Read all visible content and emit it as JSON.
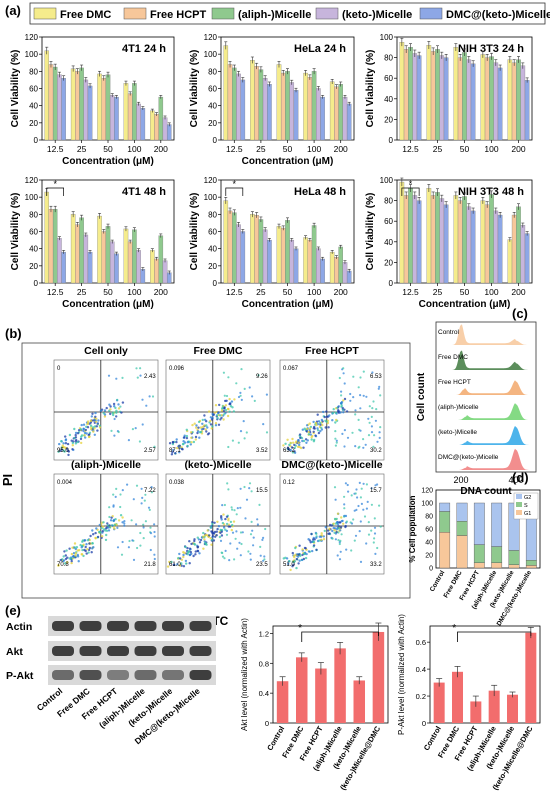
{
  "panel_labels": {
    "a": "(a)",
    "b": "(b)",
    "c": "(c)",
    "d": "(d)",
    "e": "(e)"
  },
  "colors": {
    "Free DMC": "#f5ec8c",
    "Free HCPT": "#f7c79a",
    "(aliph-)Micelle": "#8fc98e",
    "(keto-)Micelle": "#c7b5dc",
    "DMC@(keto-)Micelle": "#8da7e6",
    "e_bar": "#f26d6d",
    "g2": "#aac4ee",
    "s": "#8fc98e",
    "g1": "#f7c79a"
  },
  "legend": [
    "Free DMC",
    "Free HCPT",
    "(aliph-)Micelle",
    "(keto-)Micelle",
    "DMC@(keto-)Micelle"
  ],
  "chart_data": [
    {
      "type": "bar",
      "title": "4T1 24 h",
      "categories": [
        "12.5",
        "25",
        "50",
        "100",
        "200"
      ],
      "xlabel": "Concentration (μM)",
      "ylabel": "Cell Viability (%)",
      "ylim": [
        0,
        120
      ],
      "yticks": [
        0,
        20,
        40,
        60,
        80,
        100,
        120
      ],
      "series": [
        {
          "name": "Free DMC",
          "values": [
            104,
            83,
            77,
            66,
            34
          ]
        },
        {
          "name": "Free HCPT",
          "values": [
            88,
            80,
            72,
            54,
            30
          ]
        },
        {
          "name": "(aliph-)Micelle",
          "values": [
            85,
            84,
            76,
            66,
            50
          ]
        },
        {
          "name": "(keto-)Micelle",
          "values": [
            76,
            70,
            52,
            42,
            26
          ]
        },
        {
          "name": "DMC@(keto-)Micelle",
          "values": [
            72,
            63,
            50,
            37,
            18
          ]
        }
      ]
    },
    {
      "type": "bar",
      "title": "HeLa 24 h",
      "categories": [
        "12.5",
        "25",
        "50",
        "100",
        "200"
      ],
      "xlabel": "Concentration (μM)",
      "ylabel": "Cell Viability (%)",
      "ylim": [
        0,
        120
      ],
      "yticks": [
        0,
        20,
        40,
        60,
        80,
        100,
        120
      ],
      "series": [
        {
          "name": "Free DMC",
          "values": [
            110,
            93,
            88,
            78,
            68
          ]
        },
        {
          "name": "Free HCPT",
          "values": [
            88,
            86,
            78,
            73,
            62
          ]
        },
        {
          "name": "(aliph-)Micelle",
          "values": [
            84,
            82,
            80,
            80,
            65
          ]
        },
        {
          "name": "(keto-)Micelle",
          "values": [
            77,
            72,
            67,
            60,
            50
          ]
        },
        {
          "name": "DMC@(keto-)Micelle",
          "values": [
            70,
            65,
            58,
            50,
            42
          ]
        }
      ]
    },
    {
      "type": "bar",
      "title": "NIH 3T3 24 h",
      "categories": [
        "12.5",
        "25",
        "50",
        "100",
        "200"
      ],
      "xlabel": "",
      "ylabel": "Cell Viability (%)",
      "ylim": [
        0,
        100
      ],
      "yticks": [
        0,
        20,
        40,
        60,
        80,
        100
      ],
      "series": [
        {
          "name": "Free DMC",
          "values": [
            95,
            92,
            90,
            83,
            78
          ]
        },
        {
          "name": "Free HCPT",
          "values": [
            88,
            86,
            80,
            80,
            75
          ]
        },
        {
          "name": "(aliph-)Micelle",
          "values": [
            90,
            88,
            85,
            81,
            78
          ]
        },
        {
          "name": "(keto-)Micelle",
          "values": [
            84,
            82,
            78,
            75,
            72
          ]
        },
        {
          "name": "DMC@(keto-)Micelle",
          "values": [
            82,
            80,
            74,
            70,
            58
          ]
        }
      ]
    },
    {
      "type": "bar",
      "title": "4T1 48 h",
      "categories": [
        "12.5",
        "25",
        "50",
        "100",
        "200"
      ],
      "xlabel": "Concentration (μM)",
      "ylabel": "Cell Viability (%)",
      "ylim": [
        0,
        120
      ],
      "yticks": [
        0,
        20,
        40,
        60,
        80,
        100,
        120
      ],
      "series": [
        {
          "name": "Free DMC",
          "values": [
            106,
            80,
            78,
            63,
            38
          ]
        },
        {
          "name": "Free HCPT",
          "values": [
            86,
            68,
            60,
            48,
            28
          ]
        },
        {
          "name": "(aliph-)Micelle",
          "values": [
            86,
            76,
            66,
            62,
            55
          ]
        },
        {
          "name": "(keto-)Micelle",
          "values": [
            52,
            56,
            48,
            38,
            26
          ]
        },
        {
          "name": "DMC@(keto-)Micelle",
          "values": [
            36,
            36,
            34,
            16,
            12
          ]
        }
      ]
    },
    {
      "type": "bar",
      "title": "HeLa 48 h",
      "categories": [
        "12.5",
        "25",
        "50",
        "100",
        "200"
      ],
      "xlabel": "Concentration (μM)",
      "ylabel": "Cell Viability (%)",
      "ylim": [
        0,
        120
      ],
      "yticks": [
        0,
        20,
        40,
        60,
        80,
        100,
        120
      ],
      "series": [
        {
          "name": "Free DMC",
          "values": [
            96,
            80,
            66,
            53,
            36
          ]
        },
        {
          "name": "Free HCPT",
          "values": [
            84,
            79,
            64,
            50,
            30
          ]
        },
        {
          "name": "(aliph-)Micelle",
          "values": [
            82,
            74,
            73,
            67,
            42
          ]
        },
        {
          "name": "(keto-)Micelle",
          "values": [
            68,
            62,
            50,
            40,
            24
          ]
        },
        {
          "name": "DMC@(keto-)Micelle",
          "values": [
            60,
            50,
            40,
            28,
            14
          ]
        }
      ]
    },
    {
      "type": "bar",
      "title": "NIH 3T3 48 h",
      "categories": [
        "12.5",
        "25",
        "50",
        "100",
        "200"
      ],
      "xlabel": "Concentration (μM)",
      "ylabel": "Cell Viability (%)",
      "ylim": [
        0,
        100
      ],
      "yticks": [
        0,
        20,
        40,
        60,
        80,
        100
      ],
      "series": [
        {
          "name": "Free DMC",
          "values": [
            98,
            92,
            85,
            80,
            42
          ]
        },
        {
          "name": "Free HCPT",
          "values": [
            85,
            85,
            80,
            76,
            66
          ]
        },
        {
          "name": "(aliph-)Micelle",
          "values": [
            92,
            88,
            84,
            86,
            74
          ]
        },
        {
          "name": "(keto-)Micelle",
          "values": [
            85,
            82,
            74,
            70,
            56
          ]
        },
        {
          "name": "DMC@(keto-)Micelle",
          "values": [
            80,
            76,
            70,
            66,
            48
          ]
        }
      ]
    },
    {
      "type": "bar",
      "title": "",
      "categories": [
        "Control",
        "Free DMC",
        "Free HCPT",
        "(aliph-)Micelle",
        "(keto-)Micelle",
        "DMC@(keto-)Micelle"
      ],
      "xlabel": "",
      "ylabel": "% Cell population",
      "ylim": [
        0,
        120
      ],
      "yticks": [
        0,
        20,
        40,
        60,
        80,
        100,
        120
      ],
      "legend": [
        "G2",
        "S",
        "G1"
      ],
      "series": [
        {
          "name": "G1",
          "values": [
            55,
            50,
            8,
            8,
            5,
            4
          ]
        },
        {
          "name": "S",
          "values": [
            32,
            22,
            28,
            25,
            22,
            8
          ]
        },
        {
          "name": "G2",
          "values": [
            13,
            28,
            64,
            67,
            73,
            88
          ]
        }
      ]
    },
    {
      "type": "bar",
      "title": "",
      "categories": [
        "Control",
        "Free DMC",
        "Free HCPT",
        "(aliph-)Micelle",
        "(keto-)Micelle",
        "(keto-)Micelle@DMC"
      ],
      "xlabel": "",
      "ylabel": "Akt level (normalized with Actin)",
      "ylim": [
        0,
        1.3
      ],
      "yticks": [
        0.0,
        0.4,
        0.8,
        1.2
      ],
      "values": [
        0.56,
        0.88,
        0.73,
        1.0,
        0.57,
        1.22
      ],
      "errors": [
        0.06,
        0.06,
        0.08,
        0.08,
        0.05,
        0.12
      ]
    },
    {
      "type": "bar",
      "title": "",
      "categories": [
        "Control",
        "Free DMC",
        "Free HCPT",
        "(aliph-)Micelle",
        "(keto-)Micelle",
        "(keto-)Micelle@DMC"
      ],
      "xlabel": "",
      "ylabel": "P-Akt level (normalized with Actin)",
      "ylim": [
        0,
        0.72
      ],
      "yticks": [
        0.0,
        0.2,
        0.4,
        0.6
      ],
      "values": [
        0.3,
        0.38,
        0.16,
        0.24,
        0.21,
        0.67
      ],
      "errors": [
        0.03,
        0.04,
        0.04,
        0.04,
        0.02,
        0.04
      ]
    }
  ],
  "flow_cytometry": {
    "y_axis": "PI",
    "x_axis": "FITC",
    "panels": [
      {
        "title": "Cell only",
        "q1": "0",
        "q2": "2.43",
        "q3": "2.57",
        "q4": "95.0"
      },
      {
        "title": "Free DMC",
        "q1": "0.096",
        "q2": "9.26",
        "q3": "3.52",
        "q4": "87.1"
      },
      {
        "title": "Free HCPT",
        "q1": "0.067",
        "q2": "6.53",
        "q3": "30.2",
        "q4": "63.2"
      },
      {
        "title": "(aliph-)Micelle",
        "q1": "0.004",
        "q2": "7.22",
        "q3": "21.8",
        "q4": "70.8"
      },
      {
        "title": "(keto-)Micelle",
        "q1": "0.038",
        "q2": "15.5",
        "q3": "23.5",
        "q4": "61.0"
      },
      {
        "title": "DMC@(keto-)Micelle",
        "q1": "0.12",
        "q2": "15.7",
        "q3": "33.2",
        "q4": "51.0"
      }
    ]
  },
  "dna_histogram": {
    "ylabel": "Cell count",
    "xlabel": "DNA count",
    "ticks": [
      "200",
      "400"
    ],
    "rows": [
      {
        "label": "Control",
        "color": "#f7c79a"
      },
      {
        "label": "Free DMC",
        "color": "#3f7a3f"
      },
      {
        "label": "Free HCPT",
        "color": "#f2a86b"
      },
      {
        "label": "(aliph-)Micelle",
        "color": "#6fd46f"
      },
      {
        "label": "(keto-)Micelle",
        "color": "#2ea7e8"
      },
      {
        "label": "DMC@(keto-)Micelle",
        "color": "#f07a7a"
      }
    ]
  },
  "western_blot": {
    "labels": [
      "Actin",
      "Akt",
      "P-Akt"
    ],
    "lanes": [
      "Control",
      "Free DMC",
      "Free HCPT",
      "(aliph-)Micelle",
      "(keto-)Micelle",
      "DMC@(keto-)Micelle"
    ]
  },
  "significance_mark": "*"
}
